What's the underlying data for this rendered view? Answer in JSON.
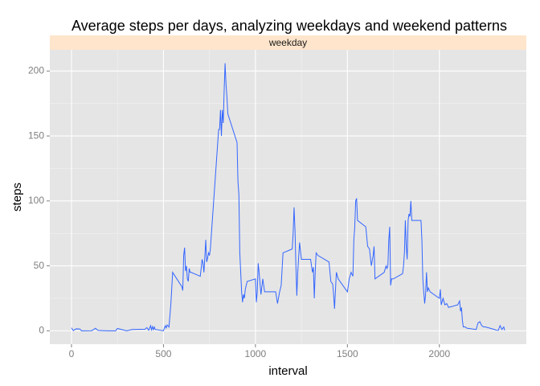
{
  "chart_data": {
    "type": "line",
    "title": "Average steps per days, analyzing weekdays and weekend patterns",
    "facet": "weekday",
    "x_label": "interval",
    "y_label": "steps",
    "x": [
      0,
      10,
      25,
      45,
      55,
      110,
      125,
      130,
      145,
      200,
      215,
      240,
      250,
      300,
      330,
      400,
      410,
      420,
      430,
      435,
      440,
      445,
      450,
      455,
      500,
      505,
      510,
      515,
      520,
      530,
      540,
      550,
      600,
      605,
      610,
      615,
      620,
      625,
      630,
      635,
      640,
      645,
      650,
      700,
      705,
      710,
      715,
      720,
      725,
      730,
      735,
      740,
      745,
      750,
      755,
      800,
      805,
      810,
      815,
      820,
      825,
      830,
      835,
      840,
      845,
      850,
      900,
      905,
      910,
      915,
      920,
      925,
      930,
      935,
      940,
      945,
      955,
      1000,
      1005,
      1010,
      1015,
      1020,
      1030,
      1040,
      1050,
      1100,
      1110,
      1120,
      1130,
      1140,
      1150,
      1200,
      1205,
      1210,
      1215,
      1220,
      1225,
      1230,
      1240,
      1250,
      1300,
      1310,
      1315,
      1320,
      1325,
      1330,
      1340,
      1400,
      1410,
      1420,
      1425,
      1430,
      1440,
      1450,
      1500,
      1510,
      1520,
      1530,
      1535,
      1540,
      1545,
      1550,
      1555,
      1600,
      1610,
      1620,
      1630,
      1640,
      1645,
      1650,
      1700,
      1710,
      1715,
      1720,
      1725,
      1730,
      1735,
      1740,
      1750,
      1800,
      1805,
      1810,
      1815,
      1820,
      1825,
      1830,
      1835,
      1840,
      1845,
      1850,
      1855,
      1900,
      1905,
      1910,
      1915,
      1920,
      1925,
      1930,
      1935,
      1940,
      1950,
      2000,
      2005,
      2010,
      2020,
      2030,
      2040,
      2050,
      2100,
      2110,
      2115,
      2120,
      2125,
      2130,
      2140,
      2150,
      2200,
      2210,
      2220,
      2230,
      2240,
      2250,
      2300,
      2310,
      2320,
      2330,
      2340,
      2350,
      2355
    ],
    "values": [
      2.3,
      0.2,
      1.5,
      1.4,
      0,
      0.1,
      1.4,
      1.9,
      0.3,
      0,
      0,
      0,
      1.8,
      0,
      1,
      1.2,
      2.5,
      0.4,
      4,
      0.8,
      3.2,
      0.9,
      3,
      1.1,
      0,
      2.1,
      3.9,
      2.2,
      4.5,
      2.9,
      20,
      45,
      34,
      31,
      58,
      64,
      46,
      50,
      40,
      38,
      48,
      45,
      45,
      42,
      48,
      55,
      52,
      45,
      57,
      70,
      53,
      56,
      60,
      58,
      63,
      155,
      155,
      170,
      150,
      170,
      160,
      185,
      206,
      190,
      180,
      167,
      145,
      115,
      105,
      60,
      45,
      30,
      22,
      28,
      25,
      32,
      38,
      40,
      22,
      30,
      52,
      45,
      28,
      40,
      30,
      30,
      30,
      21,
      29,
      35,
      60,
      63,
      75,
      95,
      78,
      50,
      27,
      45,
      68,
      55,
      55,
      45,
      49,
      25,
      45,
      60,
      58,
      53,
      38,
      36,
      28,
      17,
      45,
      40,
      30,
      40,
      45,
      42,
      70,
      80,
      100,
      102,
      85,
      80,
      65,
      63,
      50,
      58,
      65,
      40,
      45,
      50,
      48,
      50,
      70,
      80,
      35,
      40,
      40,
      44,
      50,
      60,
      85,
      65,
      55,
      85,
      90,
      88,
      100,
      85,
      85,
      85,
      70,
      40,
      30,
      21,
      28,
      45,
      30,
      33,
      30,
      25,
      32,
      20,
      25,
      20,
      21,
      18,
      20,
      23,
      15,
      18,
      8,
      3,
      3,
      2,
      1,
      6,
      7,
      4,
      3,
      3,
      1,
      0.5,
      0.3,
      4,
      1,
      3,
      0.3
    ],
    "color": "#3366ff",
    "xlim": [
      -117.75,
      2472.75
    ],
    "xticks": [
      0,
      500,
      1000,
      1500,
      2000
    ],
    "ylim": [
      -10.3,
      216.3
    ],
    "yticks": [
      0,
      50,
      100,
      150,
      200
    ],
    "grid": true,
    "minor_grid": true
  }
}
